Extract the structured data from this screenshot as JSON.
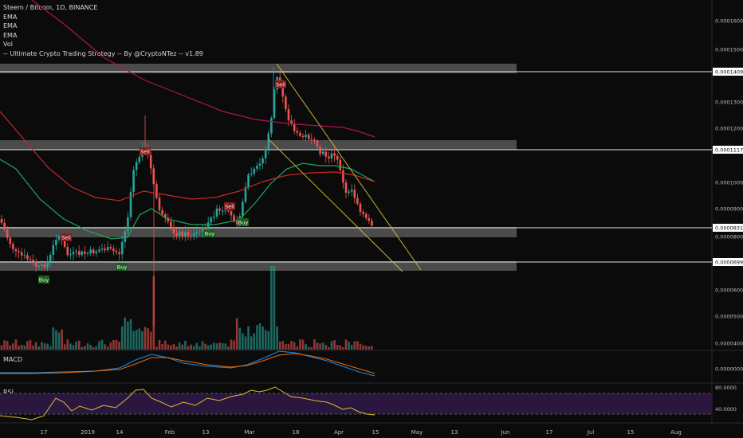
{
  "legend": {
    "symbol": "Steem / Bitcoin, 1D, BINANCE",
    "indicators": [
      "EMA",
      "EMA",
      "EMA",
      "Vol",
      "-- Ultimate Crypto Trading Strategy -- By @CryptoNTez -- v1.89"
    ]
  },
  "price_axis": {
    "ticks": [
      "0.0001600",
      "0.0001500",
      "0.0001300",
      "0.0001200",
      "0.0001000",
      "0.0000900",
      "0.0000800",
      "0.0000600",
      "0.0000500",
      "0.0000400"
    ],
    "highlighted": [
      "0.0001409",
      "0.0001117",
      "0.0000831",
      "0.0000699"
    ]
  },
  "macd_panel": {
    "title": "MACD",
    "tick": "0.0000000"
  },
  "rsi_panel": {
    "title": "RSI",
    "ticks": [
      "80.0000",
      "40.0000"
    ]
  },
  "time_axis": {
    "labels": [
      "17",
      "2019",
      "14",
      "Feb",
      "13",
      "Mar",
      "18",
      "Apr",
      "15",
      "May",
      "13",
      "Jun",
      "17",
      "Jul",
      "15",
      "Aug"
    ]
  },
  "signals": [
    {
      "label": "Sell",
      "type": "sell"
    },
    {
      "label": "Buy",
      "type": "buy"
    },
    {
      "label": "Buy",
      "type": "buy"
    },
    {
      "label": "Sell",
      "type": "sell"
    },
    {
      "label": "Buy",
      "type": "buy"
    },
    {
      "label": "Sell",
      "type": "sell"
    },
    {
      "label": "Buy",
      "type": "buy"
    },
    {
      "label": "Sell",
      "type": "sell"
    }
  ],
  "colors": {
    "bull": "#26a69a",
    "bear": "#ef5350",
    "ema_short": "#1aa85a",
    "ema_mid": "#c62828",
    "ema_long": "#ad1457",
    "trendline": "#d4c22a",
    "rsi": "#d4c22a",
    "rsi_band": "#2b1640",
    "macd": "#1e88e5",
    "macd_signal": "#ef6c00"
  }
}
